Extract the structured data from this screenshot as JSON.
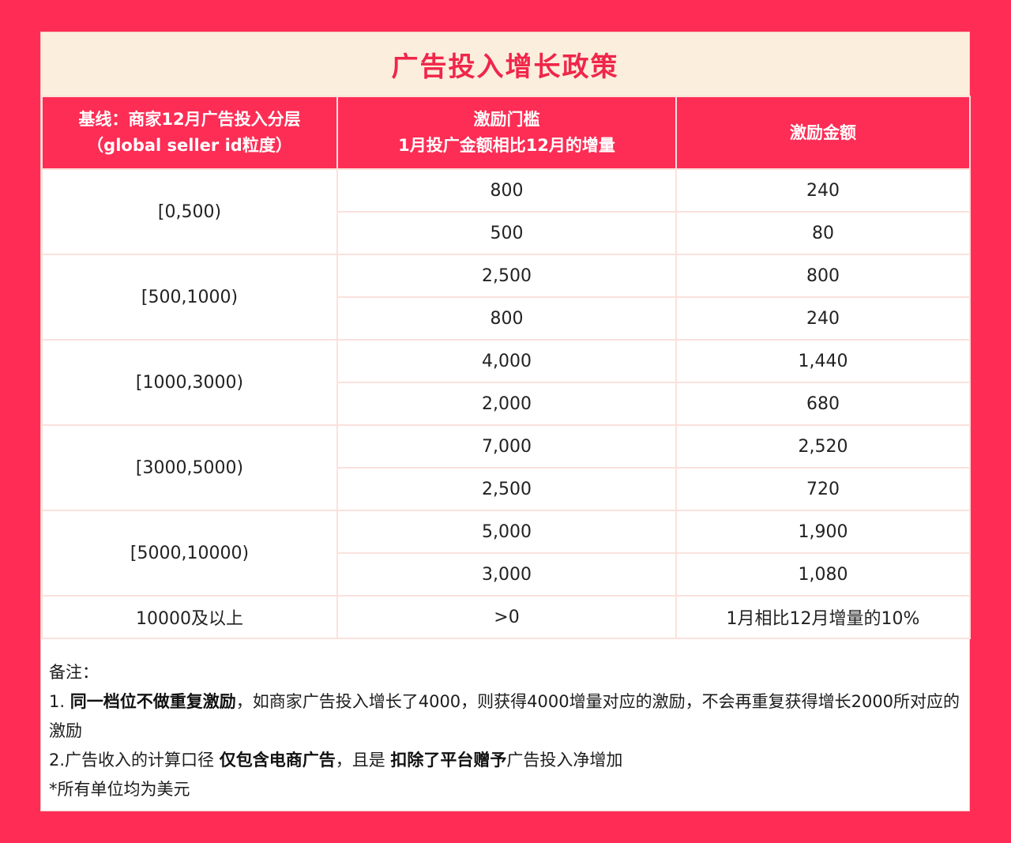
{
  "title": "广告投入增长政策",
  "headers": {
    "col1_line1": "基线：商家12月广告投入分层",
    "col1_line2": "（global seller id粒度）",
    "col2_line1": "激励门槛",
    "col2_line2": "1月投广金额相比12月的增量",
    "col3": "激励金额"
  },
  "tiers": [
    {
      "baseline": "[0,500)",
      "rows": [
        {
          "threshold": "800",
          "reward": "240"
        },
        {
          "threshold": "500",
          "reward": "80"
        }
      ]
    },
    {
      "baseline": "[500,1000)",
      "rows": [
        {
          "threshold": "2,500",
          "reward": "800"
        },
        {
          "threshold": "800",
          "reward": "240"
        }
      ]
    },
    {
      "baseline": "[1000,3000)",
      "rows": [
        {
          "threshold": "4,000",
          "reward": "1,440"
        },
        {
          "threshold": "2,000",
          "reward": "680"
        }
      ]
    },
    {
      "baseline": "[3000,5000)",
      "rows": [
        {
          "threshold": "7,000",
          "reward": "2,520"
        },
        {
          "threshold": "2,500",
          "reward": "720"
        }
      ]
    },
    {
      "baseline": "[5000,10000)",
      "rows": [
        {
          "threshold": "5,000",
          "reward": "1,900"
        },
        {
          "threshold": "3,000",
          "reward": "1,080"
        }
      ]
    }
  ],
  "last_row": {
    "baseline": "10000及以上",
    "threshold": ">0",
    "reward": "1月相比12月增量的10%"
  },
  "notes": {
    "heading": "备注：",
    "n1_prefix": "1. ",
    "n1_bold": "同一档位不做重复激励",
    "n1_rest": "，如商家广告投入增长了4000，则获得4000增量对应的激励，不会再重复获得增长2000所对应的激励",
    "n2_prefix": "2.广告收入的计算口径 ",
    "n2_bold1": "仅包含电商广告",
    "n2_mid": "，且是 ",
    "n2_bold2": "扣除了平台赠予",
    "n2_rest": "广告投入净增加",
    "n3": "*所有单位均为美元"
  }
}
